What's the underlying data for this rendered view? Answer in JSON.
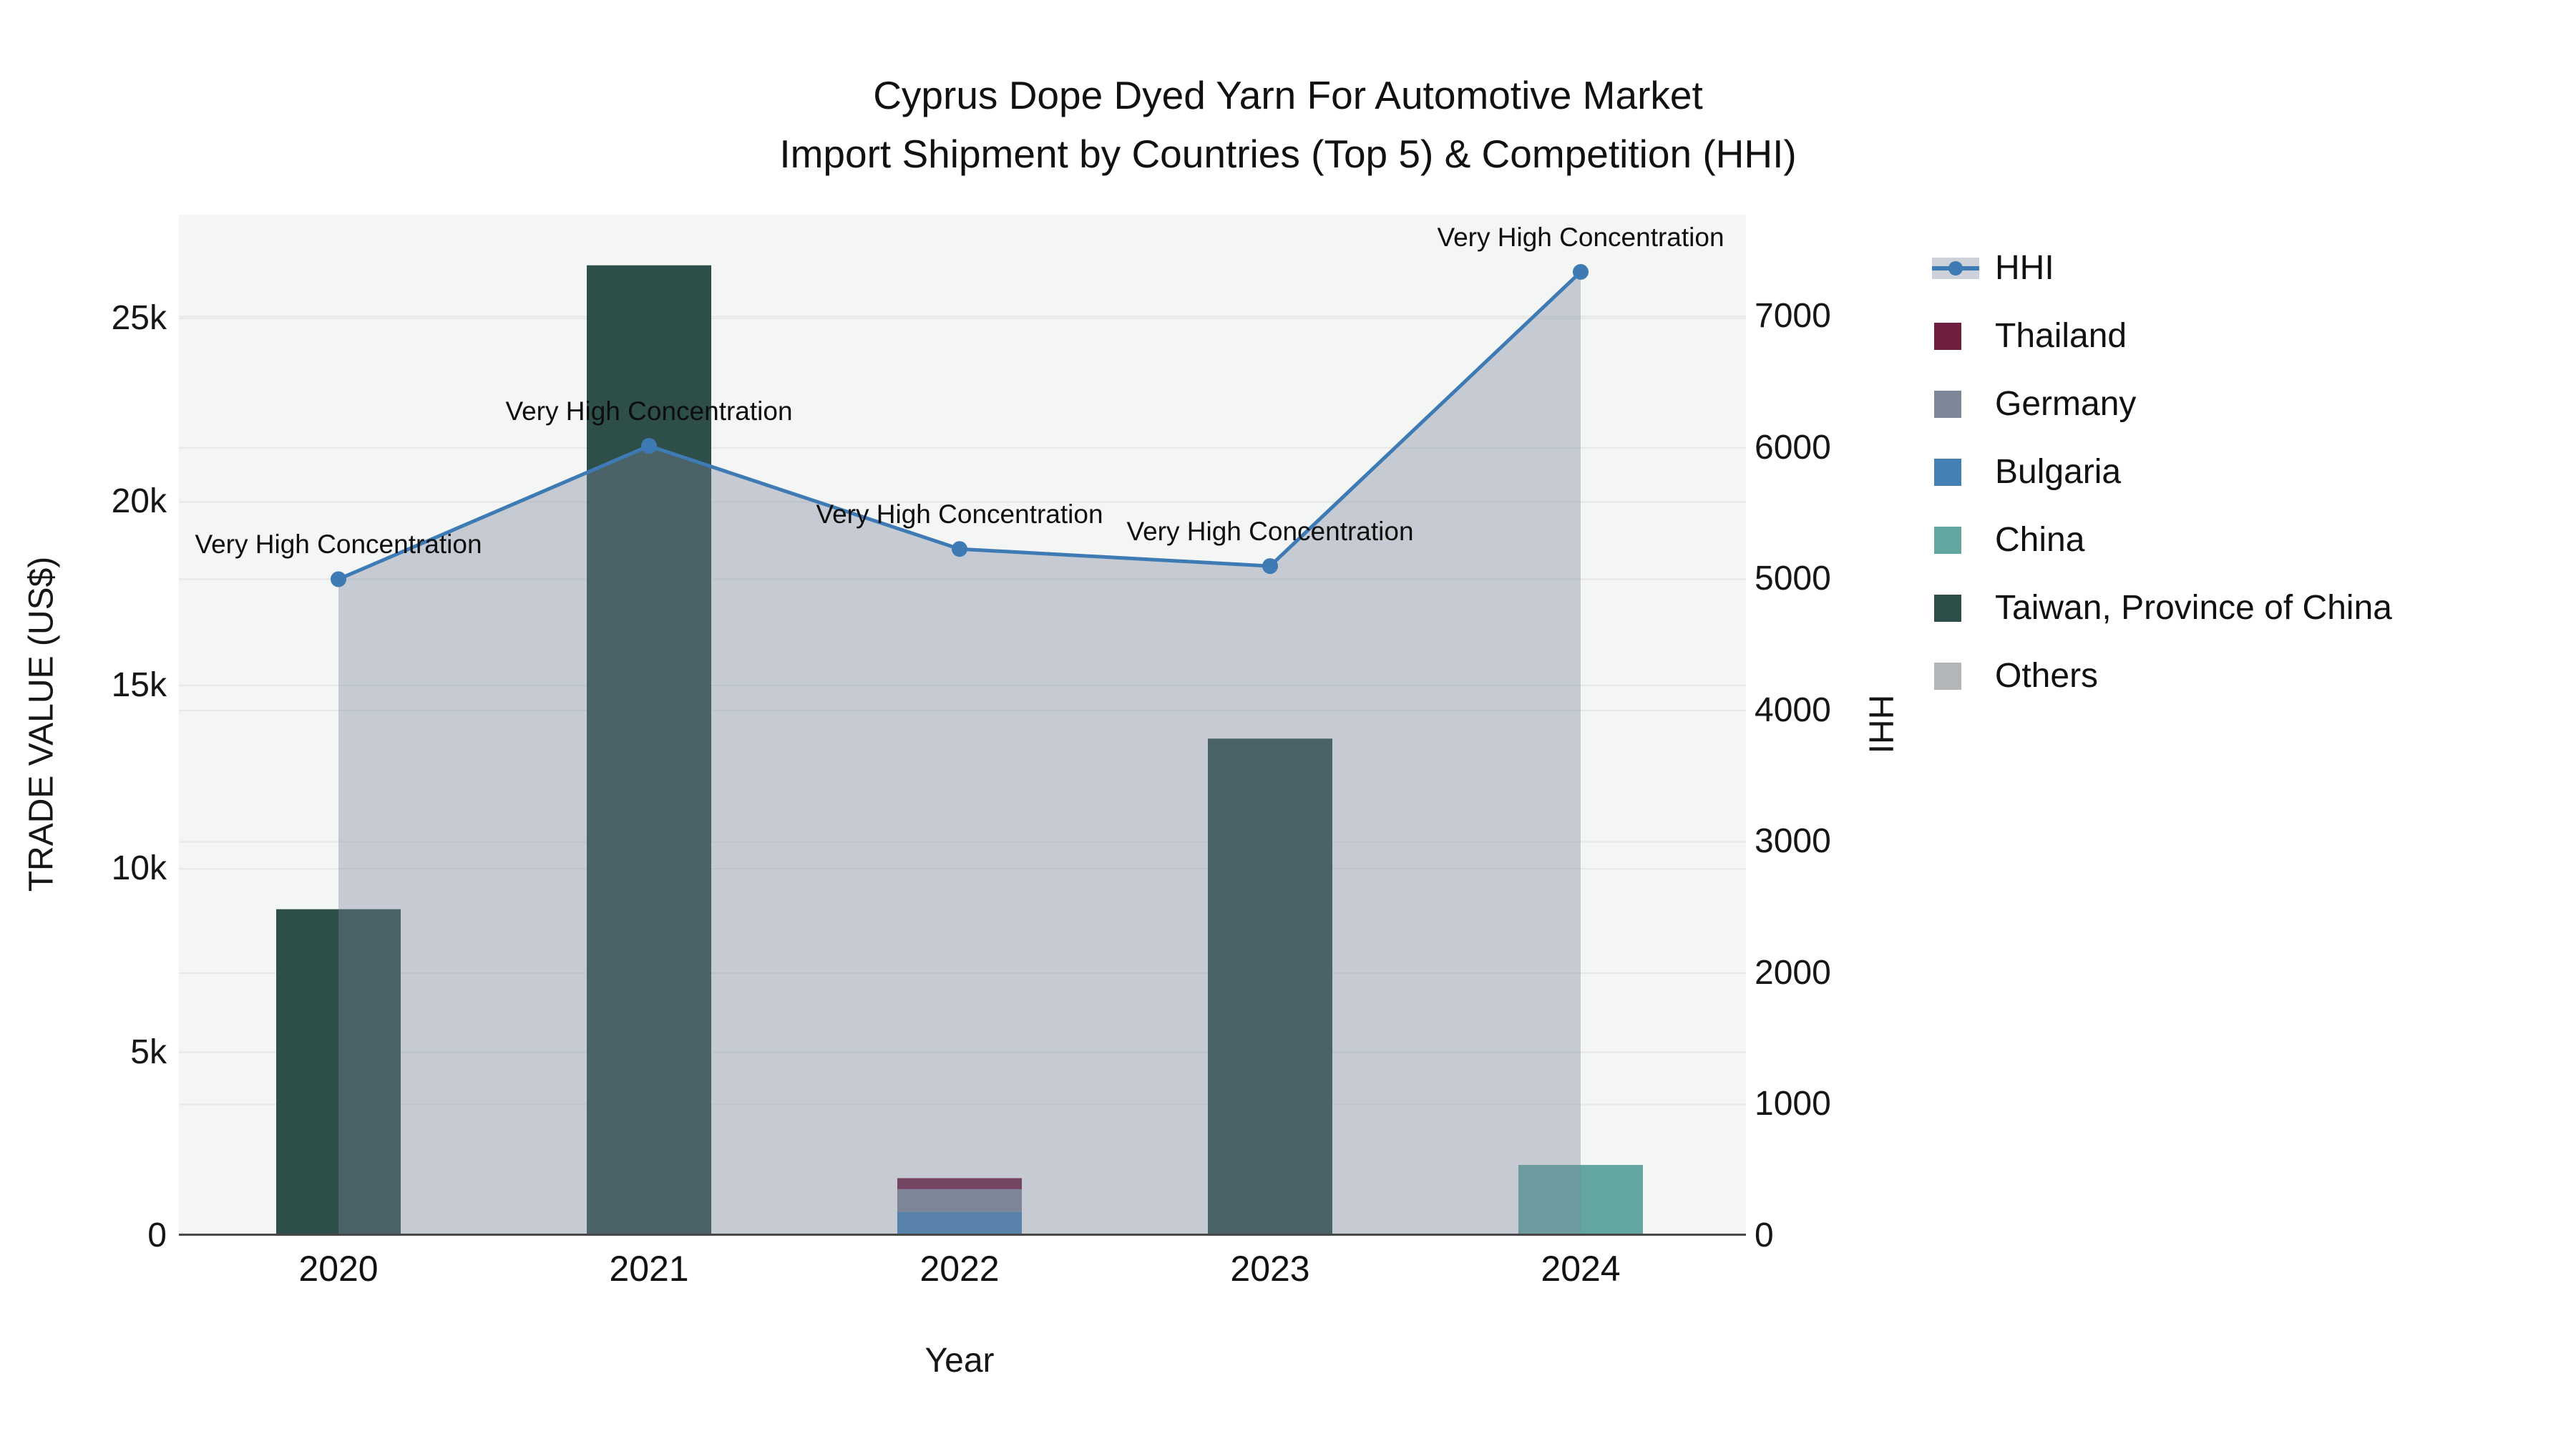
{
  "title": {
    "line1": "Cyprus Dope Dyed Yarn For Automotive Market",
    "line2": "Import Shipment by Countries (Top 5) & Competition (HHI)"
  },
  "chart_data": {
    "type": "bar+line",
    "x": {
      "title": "Year",
      "categories": [
        "2020",
        "2021",
        "2022",
        "2023",
        "2024"
      ]
    },
    "y_left": {
      "title": "TRADE VALUE (US$)",
      "range": [
        0,
        27830
      ],
      "ticks": [
        {
          "value": 0,
          "label": "0"
        },
        {
          "value": 5000,
          "label": "5k"
        },
        {
          "value": 10000,
          "label": "10k"
        },
        {
          "value": 15000,
          "label": "15k"
        },
        {
          "value": 20000,
          "label": "20k"
        },
        {
          "value": 25000,
          "label": "25k"
        }
      ]
    },
    "y_right": {
      "title": "HHI",
      "range": [
        0,
        7776
      ],
      "ticks": [
        {
          "value": 0,
          "label": "0"
        },
        {
          "value": 1000,
          "label": "1000"
        },
        {
          "value": 2000,
          "label": "2000"
        },
        {
          "value": 3000,
          "label": "3000"
        },
        {
          "value": 4000,
          "label": "4000"
        },
        {
          "value": 5000,
          "label": "5000"
        },
        {
          "value": 6000,
          "label": "6000"
        },
        {
          "value": 7000,
          "label": "7000"
        }
      ]
    },
    "bar_series": [
      {
        "name": "Thailand",
        "color": "#701D40",
        "values": [
          0,
          0,
          300,
          0,
          0
        ]
      },
      {
        "name": "Germany",
        "color": "#7C8797",
        "values": [
          0,
          0,
          620,
          0,
          0
        ]
      },
      {
        "name": "Bulgaria",
        "color": "#4380B4",
        "values": [
          0,
          0,
          650,
          0,
          0
        ]
      },
      {
        "name": "China",
        "color": "#63A6A1",
        "values": [
          0,
          0,
          0,
          0,
          1930
        ]
      },
      {
        "name": "Taiwan, Province of China",
        "color": "#2E4E4A",
        "values": [
          8900,
          26450,
          0,
          13550,
          0
        ]
      },
      {
        "name": "Others",
        "color": "#B3B6B8",
        "values": [
          0,
          0,
          0,
          0,
          0
        ]
      }
    ],
    "stack_order_bottom_to_top": [
      "Bulgaria",
      "Germany",
      "Thailand",
      "China",
      "Taiwan, Province of China",
      "Others"
    ],
    "line_series": {
      "name": "HHI",
      "color": "#3E7AB3",
      "fill_color": "rgba(123,133,155,0.38)",
      "values": [
        5000,
        6015,
        5230,
        5100,
        7340
      ]
    },
    "annotations": [
      {
        "x_index": 0,
        "text": "Very High Concentration"
      },
      {
        "x_index": 1,
        "text": "Very High Concentration"
      },
      {
        "x_index": 2,
        "text": "Very High Concentration"
      },
      {
        "x_index": 3,
        "text": "Very High Concentration"
      },
      {
        "x_index": 4,
        "text": "Very High Concentration"
      }
    ],
    "legend": {
      "entries": [
        {
          "label": "HHI",
          "type": "line",
          "color": "#3E7AB3",
          "band_color": "#CDD2DA"
        },
        {
          "label": "Thailand",
          "type": "square",
          "color": "#701D40"
        },
        {
          "label": "Germany",
          "type": "square",
          "color": "#7C8797"
        },
        {
          "label": "Bulgaria",
          "type": "square",
          "color": "#4380B4"
        },
        {
          "label": "China",
          "type": "square",
          "color": "#63A6A1"
        },
        {
          "label": "Taiwan, Province of China",
          "type": "square",
          "color": "#2E4E4A"
        },
        {
          "label": "Others",
          "type": "square",
          "color": "#B3B6B8"
        }
      ]
    },
    "styles": {
      "plot_bg": "#F4F5F5",
      "grid": "#E6E8E8",
      "axis_line": "#474747",
      "text": "#1B1B1B"
    }
  }
}
